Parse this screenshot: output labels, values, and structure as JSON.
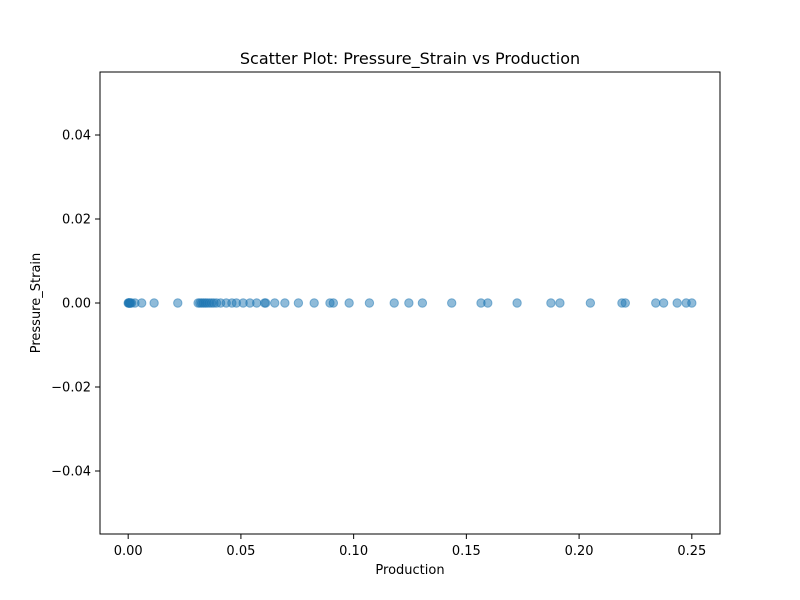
{
  "chart_data": {
    "type": "scatter",
    "title": "Scatter Plot: Pressure_Strain vs Production",
    "xlabel": "Production",
    "ylabel": "Pressure_Strain",
    "xlim": [
      -0.0125,
      0.2625
    ],
    "ylim": [
      -0.055,
      0.055
    ],
    "xticks": [
      0.0,
      0.05,
      0.1,
      0.15,
      0.2,
      0.25
    ],
    "xtick_labels": [
      "0.00",
      "0.05",
      "0.10",
      "0.15",
      "0.20",
      "0.25"
    ],
    "yticks": [
      -0.04,
      -0.02,
      0.0,
      0.02,
      0.04
    ],
    "ytick_labels": [
      "−0.04",
      "−0.02",
      "0.00",
      "0.02",
      "0.04"
    ],
    "grid": false,
    "marker_color": "#1f77b4",
    "marker_alpha": 0.5,
    "series": [
      {
        "x": [
          0.0,
          0.0002,
          0.0004,
          0.0006,
          0.0008,
          0.001,
          0.0015,
          0.003,
          0.006,
          0.0115,
          0.022,
          0.031,
          0.0318,
          0.0326,
          0.0334,
          0.0342,
          0.035,
          0.036,
          0.037,
          0.038,
          0.0392,
          0.041,
          0.0435,
          0.046,
          0.048,
          0.051,
          0.054,
          0.057,
          0.0605,
          0.061,
          0.065,
          0.0695,
          0.0755,
          0.0825,
          0.0895,
          0.091,
          0.098,
          0.107,
          0.118,
          0.1245,
          0.1305,
          0.1435,
          0.1565,
          0.1595,
          0.1725,
          0.1875,
          0.1915,
          0.205,
          0.219,
          0.2205,
          0.234,
          0.2375,
          0.2435,
          0.2475,
          0.25
        ],
        "y": [
          0.0,
          0.0,
          0.0,
          0.0,
          0.0,
          0.0,
          0.0,
          0.0,
          0.0,
          0.0,
          0.0,
          0.0,
          0.0,
          0.0,
          0.0,
          0.0,
          0.0,
          0.0,
          0.0,
          0.0,
          0.0,
          0.0,
          0.0,
          0.0,
          0.0,
          0.0,
          0.0,
          0.0,
          0.0,
          0.0,
          0.0,
          0.0,
          0.0,
          0.0,
          0.0,
          0.0,
          0.0,
          0.0,
          0.0,
          0.0,
          0.0,
          0.0,
          0.0,
          0.0,
          0.0,
          0.0,
          0.0,
          0.0,
          0.0,
          0.0,
          0.0,
          0.0,
          0.0,
          0.0,
          0.0
        ]
      }
    ]
  }
}
